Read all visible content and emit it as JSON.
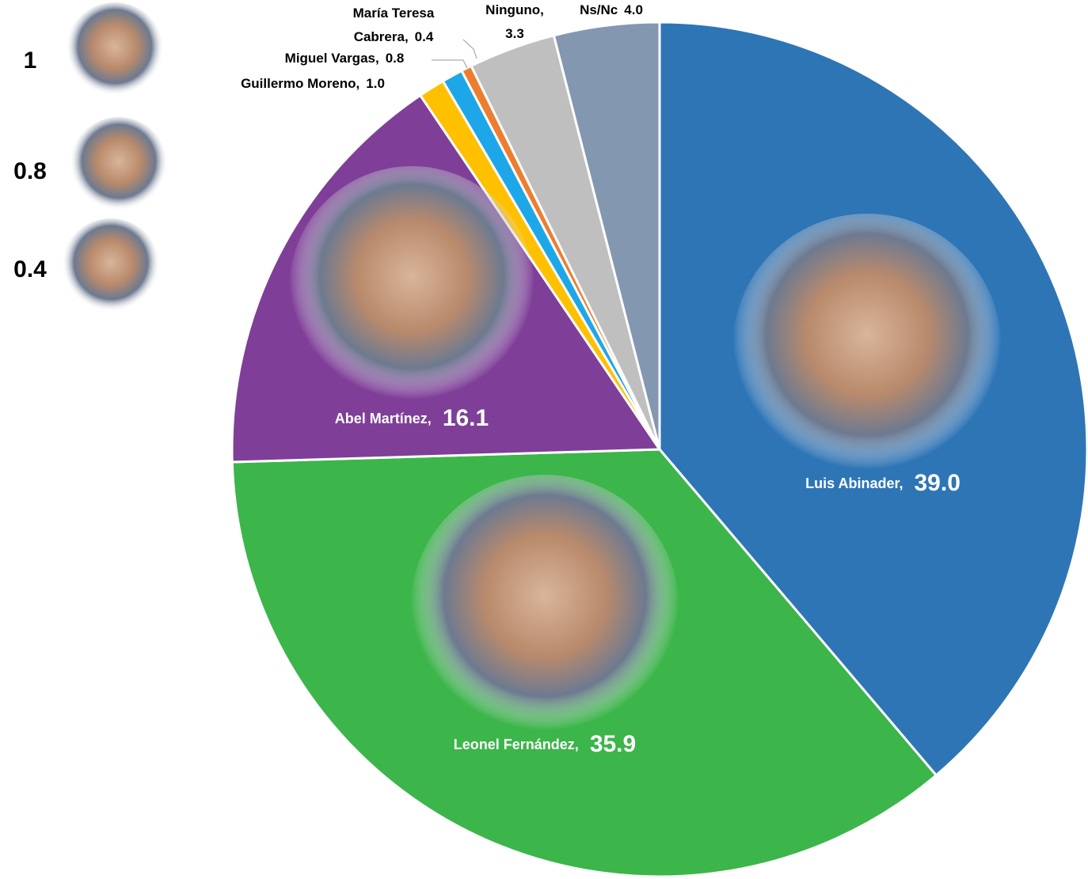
{
  "chart_data": {
    "type": "pie",
    "categories": [
      "Luis Abinader,",
      "Leonel Fernández,",
      "Abel Martínez,",
      "Guillermo Moreno,",
      "Miguel Vargas,",
      "María Teresa Cabrera,",
      "Ninguno,",
      "Ns/Nc"
    ],
    "values": [
      39.0,
      35.9,
      16.1,
      1.0,
      0.8,
      0.4,
      3.3,
      4.0
    ],
    "value_labels": [
      "39.0",
      "35.9",
      "16.1",
      "1.0",
      "0.8",
      "0.4",
      "3.3",
      "4.0"
    ],
    "colors": [
      "#2e75b6",
      "#3cb54a",
      "#7f3f98",
      "#ffc000",
      "#1ea7e8",
      "#ed7d31",
      "#bfbfbf",
      "#8497b0"
    ],
    "photo_labels": [
      1,
      0.8,
      0.4
    ]
  }
}
